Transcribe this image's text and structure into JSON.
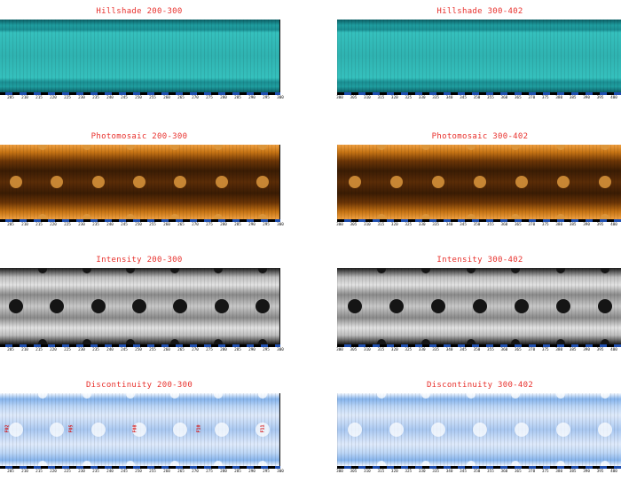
{
  "panels": [
    {
      "id": "hillshade-200-300",
      "title": "Hillshade 200-300",
      "kind": "hillshade",
      "ticks": [
        "205",
        "210",
        "215",
        "220",
        "225",
        "230",
        "235",
        "240",
        "245",
        "250",
        "255",
        "260",
        "265",
        "270",
        "275",
        "280",
        "285",
        "290",
        "295",
        "300"
      ]
    },
    {
      "id": "hillshade-300-402",
      "title": "Hillshade 300-402",
      "kind": "hillshade",
      "ticks": [
        "300",
        "305",
        "310",
        "315",
        "320",
        "325",
        "330",
        "335",
        "340",
        "345",
        "350",
        "355",
        "360",
        "365",
        "370",
        "375",
        "380",
        "385",
        "390",
        "395",
        "400"
      ]
    },
    {
      "id": "photomosaic-200-300",
      "title": "Photomosaic 200-300",
      "kind": "photo",
      "ticks": [
        "205",
        "210",
        "215",
        "220",
        "225",
        "230",
        "235",
        "240",
        "245",
        "250",
        "255",
        "260",
        "265",
        "270",
        "275",
        "280",
        "285",
        "290",
        "295",
        "300"
      ]
    },
    {
      "id": "photomosaic-300-402",
      "title": "Photomosaic 300-402",
      "kind": "photo",
      "ticks": [
        "300",
        "305",
        "310",
        "315",
        "320",
        "325",
        "330",
        "335",
        "340",
        "345",
        "350",
        "355",
        "360",
        "365",
        "370",
        "375",
        "380",
        "385",
        "390",
        "395",
        "400"
      ]
    },
    {
      "id": "intensity-200-300",
      "title": "Intensity 200-300",
      "kind": "intensity",
      "ticks": [
        "205",
        "210",
        "215",
        "220",
        "225",
        "230",
        "235",
        "240",
        "245",
        "250",
        "255",
        "260",
        "265",
        "270",
        "275",
        "280",
        "285",
        "290",
        "295",
        "300"
      ]
    },
    {
      "id": "intensity-300-402",
      "title": "Intensity 300-402",
      "kind": "intensity",
      "ticks": [
        "300",
        "305",
        "310",
        "315",
        "320",
        "325",
        "330",
        "335",
        "340",
        "345",
        "350",
        "355",
        "360",
        "365",
        "370",
        "375",
        "380",
        "385",
        "390",
        "395",
        "400"
      ]
    },
    {
      "id": "discontinuity-200-300",
      "title": "Discontinuity 200-300",
      "kind": "discont",
      "ticks": [
        "205",
        "210",
        "215",
        "220",
        "225",
        "230",
        "235",
        "240",
        "245",
        "250",
        "255",
        "260",
        "265",
        "270",
        "275",
        "280",
        "285",
        "290",
        "295",
        "300"
      ],
      "markers": [
        "F02",
        "F05",
        "F08",
        "F10",
        "F11"
      ]
    },
    {
      "id": "discontinuity-300-402",
      "title": "Discontinuity 300-402",
      "kind": "discont",
      "ticks": [
        "300",
        "305",
        "310",
        "315",
        "320",
        "325",
        "330",
        "335",
        "340",
        "345",
        "350",
        "355",
        "360",
        "365",
        "370",
        "375",
        "380",
        "385",
        "390",
        "395",
        "400"
      ]
    }
  ],
  "colors": {
    "title": "#e8302c",
    "hillshade": "#2fb9b6",
    "photo": "#b5630f",
    "intensity": "#8a8a8a",
    "discont": "#9cc4f0"
  }
}
